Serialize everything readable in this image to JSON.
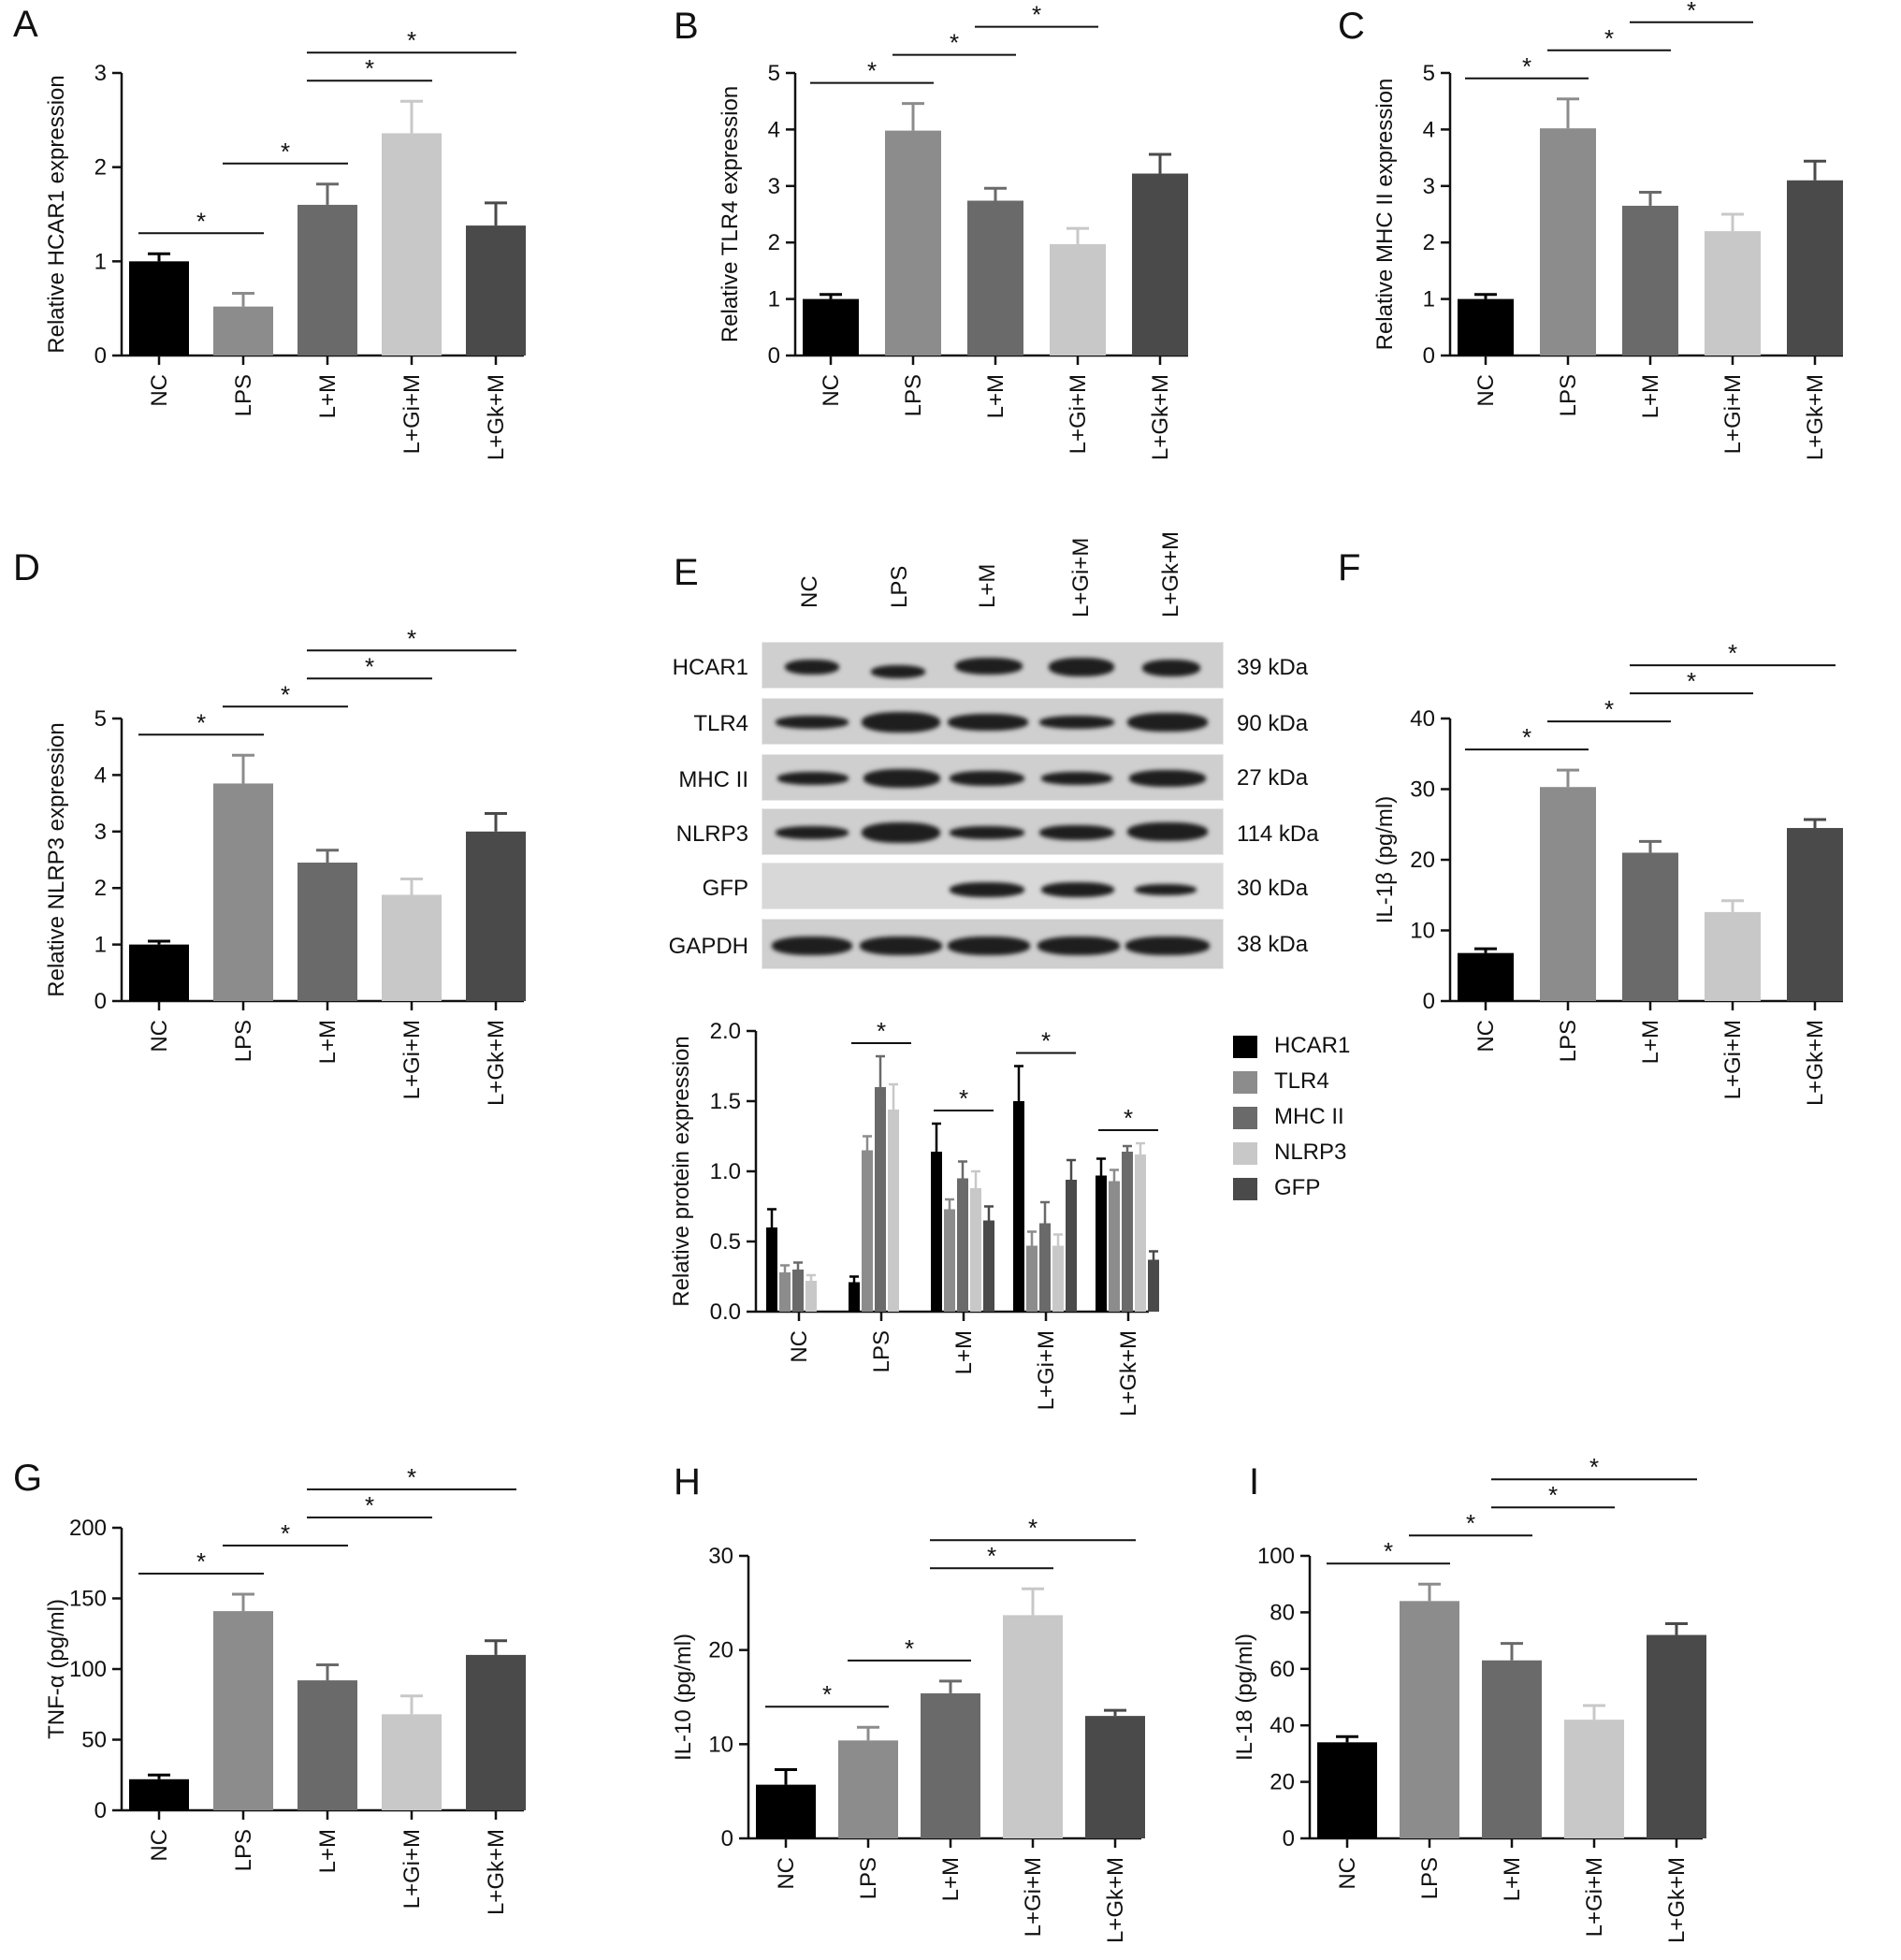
{
  "panels": {
    "A": "A",
    "B": "B",
    "C": "C",
    "D": "D",
    "E": "E",
    "F": "F",
    "G": "G",
    "H": "H",
    "I": "I"
  },
  "colors": {
    "NC": "#000000",
    "LPS": "#8c8c8c",
    "L+M": "#6a6a6a",
    "L+Gi+M": "#c8c8c8",
    "L+Gk+M": "#4a4a4a",
    "sig_marker": "*"
  },
  "blot": {
    "lanes": [
      "NC",
      "LPS",
      "L+M",
      "L+Gi+M",
      "L+Gk+M"
    ],
    "rows": [
      {
        "protein": "HCAR1",
        "kda": "39 kDa"
      },
      {
        "protein": "TLR4",
        "kda": "90 kDa"
      },
      {
        "protein": "MHC II",
        "kda": "27 kDa"
      },
      {
        "protein": "NLRP3",
        "kda": "114 kDa"
      },
      {
        "protein": "GFP",
        "kda": "30 kDa"
      },
      {
        "protein": "GAPDH",
        "kda": "38 kDa"
      }
    ]
  },
  "chart_data": [
    {
      "id": "A",
      "type": "bar",
      "categories": [
        "NC",
        "LPS",
        "L+M",
        "L+Gi+M",
        "L+Gk+M"
      ],
      "values": [
        1.0,
        0.52,
        1.6,
        2.36,
        1.38
      ],
      "errors": [
        0.08,
        0.14,
        0.22,
        0.34,
        0.24
      ],
      "ylabel": "Relative HCAR1 expression",
      "ylim": [
        0,
        3
      ],
      "yticks": [
        "0",
        "1",
        "2",
        "3"
      ],
      "significance": [
        [
          0,
          1
        ],
        [
          1,
          2
        ],
        [
          2,
          3
        ],
        [
          2,
          4
        ]
      ]
    },
    {
      "id": "B",
      "type": "bar",
      "categories": [
        "NC",
        "LPS",
        "L+M",
        "L+Gi+M",
        "L+Gk+M"
      ],
      "values": [
        1.0,
        3.98,
        2.74,
        1.97,
        3.22
      ],
      "errors": [
        0.08,
        0.48,
        0.22,
        0.28,
        0.34
      ],
      "ylabel": "Relative TLR4 expression",
      "ylim": [
        0,
        5
      ],
      "yticks": [
        "0",
        "1",
        "2",
        "3",
        "4",
        "5"
      ],
      "significance": [
        [
          0,
          1
        ],
        [
          1,
          2
        ],
        [
          2,
          3
        ],
        [
          2,
          4
        ]
      ]
    },
    {
      "id": "C",
      "type": "bar",
      "categories": [
        "NC",
        "LPS",
        "L+M",
        "L+Gi+M",
        "L+Gk+M"
      ],
      "values": [
        1.0,
        4.02,
        2.65,
        2.2,
        3.1
      ],
      "errors": [
        0.08,
        0.52,
        0.24,
        0.3,
        0.34
      ],
      "ylabel": "Relative MHC II expression",
      "ylim": [
        0,
        5
      ],
      "yticks": [
        "0",
        "1",
        "2",
        "3",
        "4",
        "5"
      ],
      "significance": [
        [
          0,
          1
        ],
        [
          1,
          2
        ],
        [
          2,
          3
        ],
        [
          2,
          4
        ]
      ]
    },
    {
      "id": "D",
      "type": "bar",
      "categories": [
        "NC",
        "LPS",
        "L+M",
        "L+Gi+M",
        "L+Gk+M"
      ],
      "values": [
        1.0,
        3.85,
        2.45,
        1.88,
        3.0
      ],
      "errors": [
        0.06,
        0.5,
        0.22,
        0.28,
        0.32
      ],
      "ylabel": "Relative NLRP3 expression",
      "ylim": [
        0,
        5
      ],
      "yticks": [
        "0",
        "1",
        "2",
        "3",
        "4",
        "5"
      ],
      "significance": [
        [
          0,
          1
        ],
        [
          1,
          2
        ],
        [
          2,
          3
        ],
        [
          2,
          4
        ]
      ]
    },
    {
      "id": "E",
      "type": "bar",
      "categories": [
        "NC",
        "LPS",
        "L+M",
        "L+Gi+M",
        "L+Gk+M"
      ],
      "series": [
        {
          "name": "HCAR1",
          "values": [
            0.6,
            0.21,
            1.14,
            1.5,
            0.97
          ],
          "errors": [
            0.13,
            0.04,
            0.2,
            0.25,
            0.12
          ]
        },
        {
          "name": "TLR4",
          "values": [
            0.28,
            1.15,
            0.73,
            0.47,
            0.93
          ],
          "errors": [
            0.05,
            0.1,
            0.07,
            0.1,
            0.08
          ]
        },
        {
          "name": "MHC II",
          "values": [
            0.3,
            1.6,
            0.95,
            0.63,
            1.14
          ],
          "errors": [
            0.05,
            0.22,
            0.12,
            0.15,
            0.04
          ]
        },
        {
          "name": "NLRP3",
          "values": [
            0.22,
            1.44,
            0.88,
            0.47,
            1.12
          ],
          "errors": [
            0.04,
            0.18,
            0.12,
            0.08,
            0.08
          ]
        },
        {
          "name": "GFP",
          "values": [
            0,
            0,
            0.65,
            0.94,
            0.37
          ],
          "errors": [
            0,
            0,
            0.1,
            0.14,
            0.06
          ]
        }
      ],
      "ylabel": "Relative protein expression",
      "ylim": [
        0,
        2.0
      ],
      "yticks": [
        "0.0",
        "0.5",
        "1.0",
        "1.5",
        "2.0"
      ],
      "significance_groups": [
        1,
        2,
        3,
        4
      ]
    },
    {
      "id": "F",
      "type": "bar",
      "categories": [
        "NC",
        "LPS",
        "L+M",
        "L+Gi+M",
        "L+Gk+M"
      ],
      "values": [
        6.8,
        30.3,
        21.0,
        12.6,
        24.5
      ],
      "errors": [
        0.6,
        2.4,
        1.6,
        1.6,
        1.2
      ],
      "ylabel": "IL-1β (pg/ml)",
      "ylim": [
        0,
        40
      ],
      "yticks": [
        "0",
        "10",
        "20",
        "30",
        "40"
      ],
      "significance": [
        [
          0,
          1
        ],
        [
          1,
          2
        ],
        [
          2,
          3
        ],
        [
          2,
          4
        ]
      ]
    },
    {
      "id": "G",
      "type": "bar",
      "categories": [
        "NC",
        "LPS",
        "L+M",
        "L+Gi+M",
        "L+Gk+M"
      ],
      "values": [
        22,
        141,
        92,
        68,
        110
      ],
      "errors": [
        3,
        12,
        11,
        13,
        10
      ],
      "ylabel": "TNF-α (pg/ml)",
      "ylim": [
        0,
        200
      ],
      "yticks": [
        "0",
        "50",
        "100",
        "150",
        "200"
      ],
      "significance": [
        [
          0,
          1
        ],
        [
          1,
          2
        ],
        [
          2,
          3
        ],
        [
          2,
          4
        ]
      ]
    },
    {
      "id": "H",
      "type": "bar",
      "categories": [
        "NC",
        "LPS",
        "L+M",
        "L+Gi+M",
        "L+Gk+M"
      ],
      "values": [
        5.7,
        10.4,
        15.4,
        23.7,
        13.0
      ],
      "errors": [
        1.6,
        1.4,
        1.3,
        2.8,
        0.6
      ],
      "ylabel": "IL-10 (pg/ml)",
      "ylim": [
        0,
        30
      ],
      "yticks": [
        "0",
        "10",
        "20",
        "30"
      ],
      "significance": [
        [
          0,
          1
        ],
        [
          1,
          2
        ],
        [
          2,
          3
        ],
        [
          2,
          4
        ]
      ]
    },
    {
      "id": "I",
      "type": "bar",
      "categories": [
        "NC",
        "LPS",
        "L+M",
        "L+Gi+M",
        "L+Gk+M"
      ],
      "values": [
        34,
        84,
        63,
        42,
        72
      ],
      "errors": [
        2,
        6,
        6,
        5,
        4
      ],
      "ylabel": "IL-18 (pg/ml)",
      "ylim": [
        0,
        100
      ],
      "yticks": [
        "0",
        "20",
        "40",
        "60",
        "80",
        "100"
      ],
      "significance": [
        [
          0,
          1
        ],
        [
          1,
          2
        ],
        [
          2,
          3
        ],
        [
          2,
          4
        ]
      ]
    }
  ]
}
